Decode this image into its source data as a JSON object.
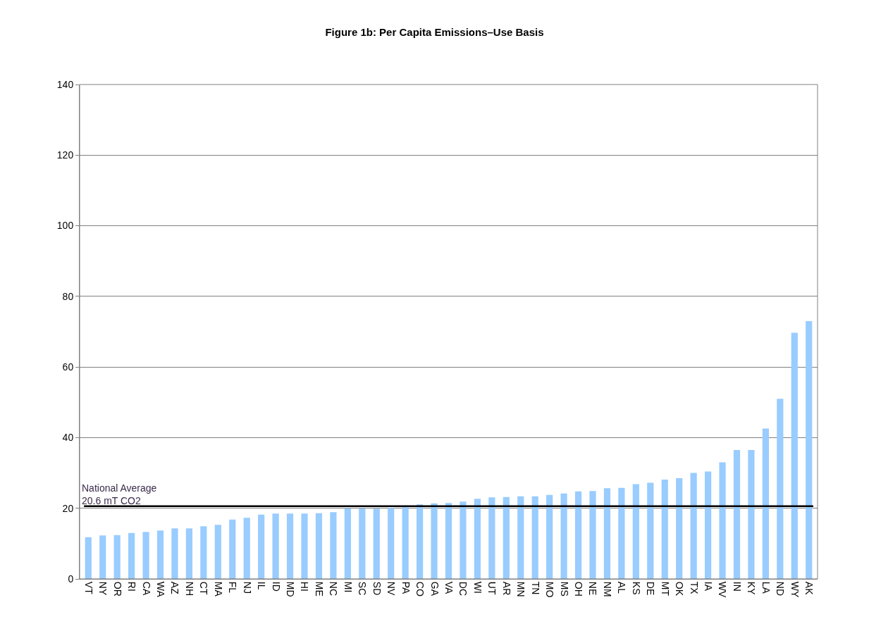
{
  "chart_data": {
    "type": "bar",
    "title": "Figure 1b: Per Capita Emissions–Use Basis",
    "categories": [
      "VT",
      "NY",
      "OR",
      "RI",
      "CA",
      "WA",
      "AZ",
      "NH",
      "CT",
      "MA",
      "FL",
      "NJ",
      "IL",
      "ID",
      "MD",
      "HI",
      "ME",
      "NC",
      "MI",
      "SC",
      "SD",
      "NV",
      "PA",
      "CO",
      "GA",
      "VA",
      "DC",
      "WI",
      "UT",
      "AR",
      "MN",
      "TN",
      "MO",
      "MS",
      "OH",
      "NE",
      "NM",
      "AL",
      "KS",
      "DE",
      "MT",
      "OK",
      "TX",
      "IA",
      "WV",
      "IN",
      "KY",
      "LA",
      "ND",
      "WY",
      "AK"
    ],
    "values": [
      11.8,
      12.3,
      12.4,
      13,
      13.3,
      13.7,
      14.3,
      14.3,
      14.9,
      15.3,
      16.8,
      17.3,
      18.2,
      18.5,
      18.5,
      18.5,
      18.6,
      18.9,
      20,
      20,
      19.9,
      20.1,
      20.6,
      21.1,
      21.4,
      21.5,
      21.9,
      22.7,
      23.1,
      23.2,
      23.4,
      23.4,
      23.8,
      24.2,
      24.8,
      24.9,
      25.7,
      25.8,
      26.8,
      27.2,
      28.1,
      28.5,
      30,
      30.4,
      33,
      36.5,
      36.5,
      42.6,
      51,
      69.7,
      73
    ],
    "color": "#99ccff",
    "ylim": [
      0,
      140
    ],
    "yticks": [
      0,
      20,
      40,
      60,
      80,
      100,
      120,
      140
    ],
    "grid": "y",
    "ref_lines": [
      {
        "axis": "y",
        "value": 20.6,
        "label": "National Average\n20.6 mT CO2",
        "color": "#000000"
      }
    ]
  }
}
